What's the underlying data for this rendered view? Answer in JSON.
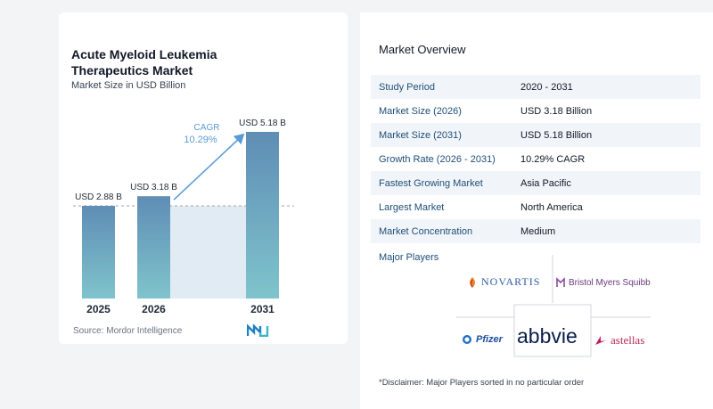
{
  "chart_data": {
    "type": "bar",
    "title": "Acute Myeloid Leukemia Therapeutics Market",
    "subtitle": "Market Size in USD Billion",
    "categories": [
      "2025",
      "2026",
      "2031"
    ],
    "values": [
      2.88,
      3.18,
      5.18
    ],
    "data_labels": [
      "USD 2.88 B",
      "USD 3.18 B",
      "USD 5.18 B"
    ],
    "cagr_label": "CAGR",
    "cagr_value": "10.29%",
    "ylim": [
      0,
      5.18
    ],
    "colors": {
      "bar_top": "#5f8db5",
      "bar_bottom": "#7fc4cc",
      "cagr": "#5b9bd5",
      "shade": "#e1ebf3",
      "dashed": "#9ca3af"
    }
  },
  "source": "Source:  Mordor Intelligence",
  "overview": {
    "title": "Market Overview",
    "rows": [
      {
        "label": "Study Period",
        "value": "2020 - 2031"
      },
      {
        "label": "Market Size (2026)",
        "value": "USD 3.18 Billion"
      },
      {
        "label": "Market Size (2031)",
        "value": "USD 5.18 Billion"
      },
      {
        "label": "Growth Rate (2026 - 2031)",
        "value": "10.29% CAGR"
      },
      {
        "label": "Fastest Growing Market",
        "value": "Asia Pacific"
      },
      {
        "label": "Largest Market",
        "value": "North America"
      },
      {
        "label": "Market Concentration",
        "value": "Medium"
      }
    ]
  },
  "players": {
    "title": "Major Players",
    "logos": [
      "NOVARTIS",
      "Bristol Myers Squibb",
      "Pfizer",
      "abbvie",
      "astellas"
    ]
  },
  "disclaimer": "*Disclaimer: Major Players sorted in no particular order"
}
